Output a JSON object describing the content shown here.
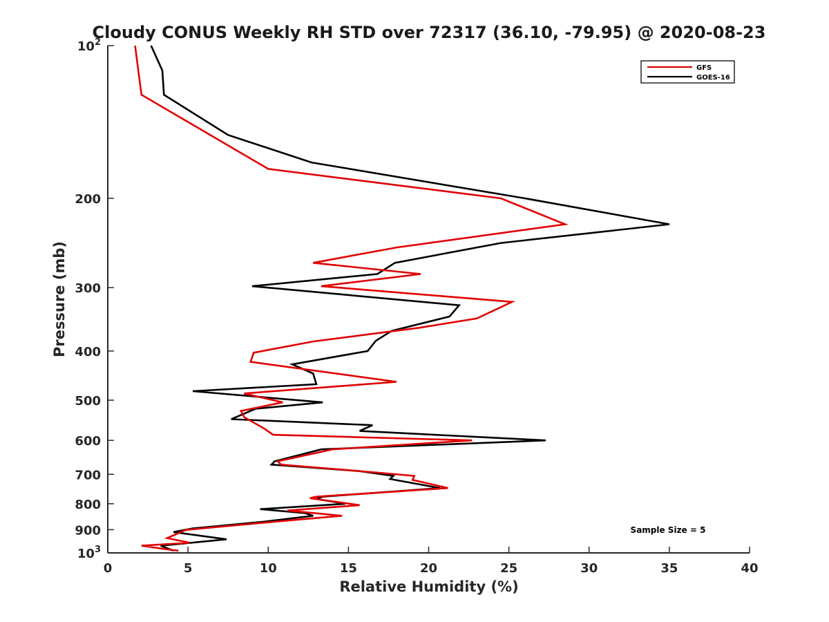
{
  "chart_data": {
    "type": "line",
    "title": "Cloudy CONUS Weekly RH STD over 72317 (36.10, -79.95) @ 2020-08-23",
    "xlabel": "Relative Humidity (%)",
    "ylabel": "Pressure (mb)",
    "xlim": [
      0,
      40
    ],
    "ylim": [
      100,
      1000
    ],
    "yscale": "log",
    "y_reversed": true,
    "grid": false,
    "legend_position": "top-right",
    "x_ticks": [
      "0",
      "5",
      "10",
      "15",
      "20",
      "25",
      "30",
      "35",
      "40"
    ],
    "y_ticks": [
      {
        "value": 100,
        "base": "10",
        "exp": "2"
      },
      {
        "value": 200,
        "label": "200"
      },
      {
        "value": 300,
        "label": "300"
      },
      {
        "value": 400,
        "label": "400"
      },
      {
        "value": 500,
        "label": "500"
      },
      {
        "value": 600,
        "label": "600"
      },
      {
        "value": 700,
        "label": "700"
      },
      {
        "value": 800,
        "label": "800"
      },
      {
        "value": 900,
        "label": "900"
      },
      {
        "value": 1000,
        "base": "10",
        "exp": "3"
      }
    ],
    "annotation": "Sample Size = 5",
    "series": [
      {
        "name": "GFS",
        "color": "#e00000",
        "points": [
          [
            1.7,
            100
          ],
          [
            2.1,
            125
          ],
          [
            10.0,
            175
          ],
          [
            24.5,
            200
          ],
          [
            28.5,
            225
          ],
          [
            18.0,
            250
          ],
          [
            12.8,
            268
          ],
          [
            19.5,
            282
          ],
          [
            13.3,
            298
          ],
          [
            25.2,
            320
          ],
          [
            23.0,
            345
          ],
          [
            19.4,
            360
          ],
          [
            12.8,
            383
          ],
          [
            9.1,
            403
          ],
          [
            8.9,
            420
          ],
          [
            18.0,
            460
          ],
          [
            8.5,
            485
          ],
          [
            10.9,
            505
          ],
          [
            8.3,
            525
          ],
          [
            8.5,
            540
          ],
          [
            9.8,
            570
          ],
          [
            10.3,
            585
          ],
          [
            22.7,
            600
          ],
          [
            14.0,
            625
          ],
          [
            10.6,
            660
          ],
          [
            10.8,
            670
          ],
          [
            16.9,
            695
          ],
          [
            19.1,
            705
          ],
          [
            19.0,
            718
          ],
          [
            21.2,
            745
          ],
          [
            13.0,
            775
          ],
          [
            12.6,
            780
          ],
          [
            15.7,
            805
          ],
          [
            11.2,
            825
          ],
          [
            14.6,
            845
          ],
          [
            10.9,
            865
          ],
          [
            5.0,
            900
          ],
          [
            4.8,
            903
          ],
          [
            3.7,
            935
          ],
          [
            5.1,
            955
          ],
          [
            2.1,
            968
          ],
          [
            3.8,
            985
          ],
          [
            4.4,
            990
          ]
        ]
      },
      {
        "name": "GOES-16",
        "color": "#000000",
        "points": [
          [
            2.7,
            100
          ],
          [
            3.4,
            112
          ],
          [
            3.5,
            125
          ],
          [
            7.5,
            150
          ],
          [
            12.7,
            170
          ],
          [
            26.0,
            200
          ],
          [
            35.0,
            225
          ],
          [
            24.5,
            245
          ],
          [
            17.9,
            268
          ],
          [
            16.8,
            282
          ],
          [
            9.0,
            298
          ],
          [
            21.9,
            325
          ],
          [
            21.3,
            342
          ],
          [
            17.7,
            365
          ],
          [
            16.7,
            382
          ],
          [
            16.2,
            400
          ],
          [
            11.5,
            425
          ],
          [
            12.8,
            443
          ],
          [
            13.0,
            465
          ],
          [
            5.3,
            480
          ],
          [
            13.4,
            505
          ],
          [
            9.2,
            520
          ],
          [
            7.7,
            545
          ],
          [
            16.5,
            560
          ],
          [
            15.7,
            575
          ],
          [
            27.3,
            600
          ],
          [
            13.3,
            625
          ],
          [
            10.4,
            660
          ],
          [
            10.2,
            670
          ],
          [
            15.7,
            690
          ],
          [
            17.8,
            705
          ],
          [
            17.6,
            715
          ],
          [
            20.7,
            745
          ],
          [
            13.4,
            775
          ],
          [
            13.0,
            783
          ],
          [
            14.8,
            800
          ],
          [
            9.5,
            820
          ],
          [
            12.3,
            835
          ],
          [
            12.8,
            845
          ],
          [
            9.7,
            868
          ],
          [
            5.3,
            895
          ],
          [
            4.1,
            910
          ],
          [
            7.4,
            940
          ],
          [
            3.3,
            968
          ],
          [
            4.1,
            990
          ]
        ]
      }
    ]
  }
}
